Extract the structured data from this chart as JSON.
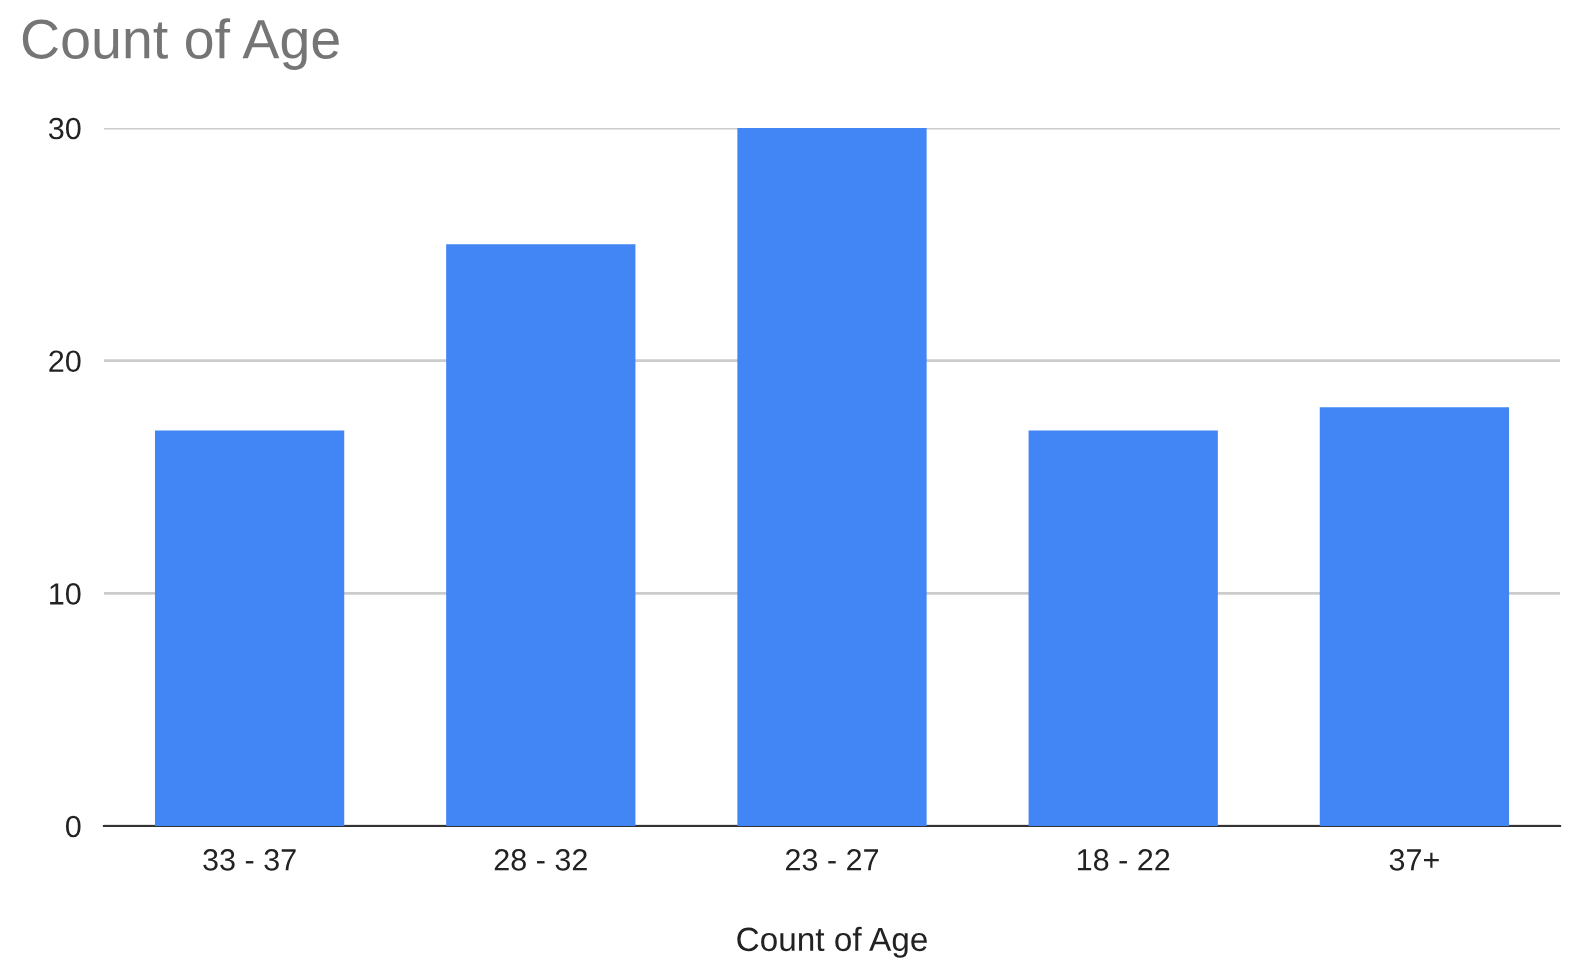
{
  "chart_data": {
    "type": "bar",
    "title": "Count of Age",
    "xlabel": "Count of Age",
    "categories": [
      "33 - 37",
      "28 - 32",
      "23 - 27",
      "18 - 22",
      "37+"
    ],
    "values": [
      17,
      25,
      30,
      17,
      18
    ],
    "color": "#4285f4",
    "ylim": [
      0,
      30
    ],
    "yticks": [
      0,
      10,
      20,
      30
    ],
    "grid": "y"
  }
}
